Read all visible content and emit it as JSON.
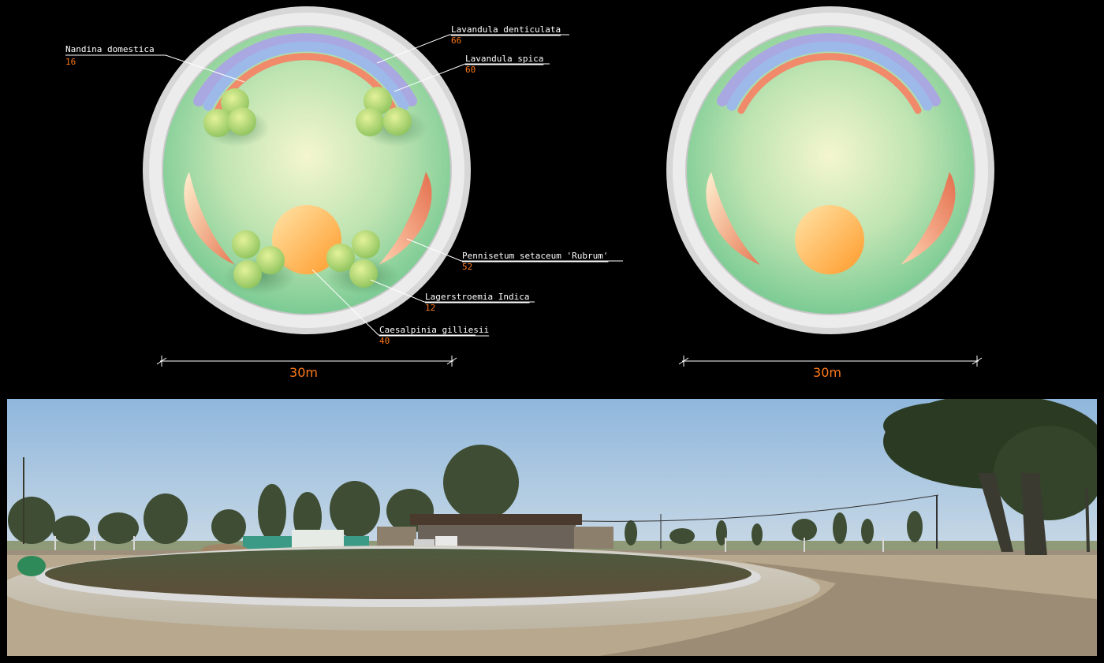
{
  "plans": {
    "left": {
      "scale_label": "30m",
      "labels": [
        {
          "name": "Nandina domestica",
          "qty": "16"
        },
        {
          "name": "Lavandula denticulata",
          "qty": "66"
        },
        {
          "name": "Lavandula spica",
          "qty": "60"
        },
        {
          "name": "Pennisetum setaceum 'Rubrum'",
          "qty": "52"
        },
        {
          "name": "Lagerstroemia Indica",
          "qty": "12"
        },
        {
          "name": "Caesalpinia gilliesii",
          "qty": "40"
        }
      ]
    },
    "right": {
      "scale_label": "30m"
    }
  },
  "colors": {
    "background": "#000000",
    "label_text": "#ffffff",
    "quantity_text": "#ff7a1a",
    "lawn": "#9fd9a6",
    "curb": "#e6e6e6",
    "lavender_outer": "#a9a8e0",
    "lavender_inner": "#9db9ea",
    "salvia_band": "#f08a6a",
    "shrub": "#b9d86a",
    "pennisetum": "#e88462",
    "caesalpinia": "#ffb04a"
  },
  "photo": {
    "subject": "roundabout-under-construction-photo"
  }
}
